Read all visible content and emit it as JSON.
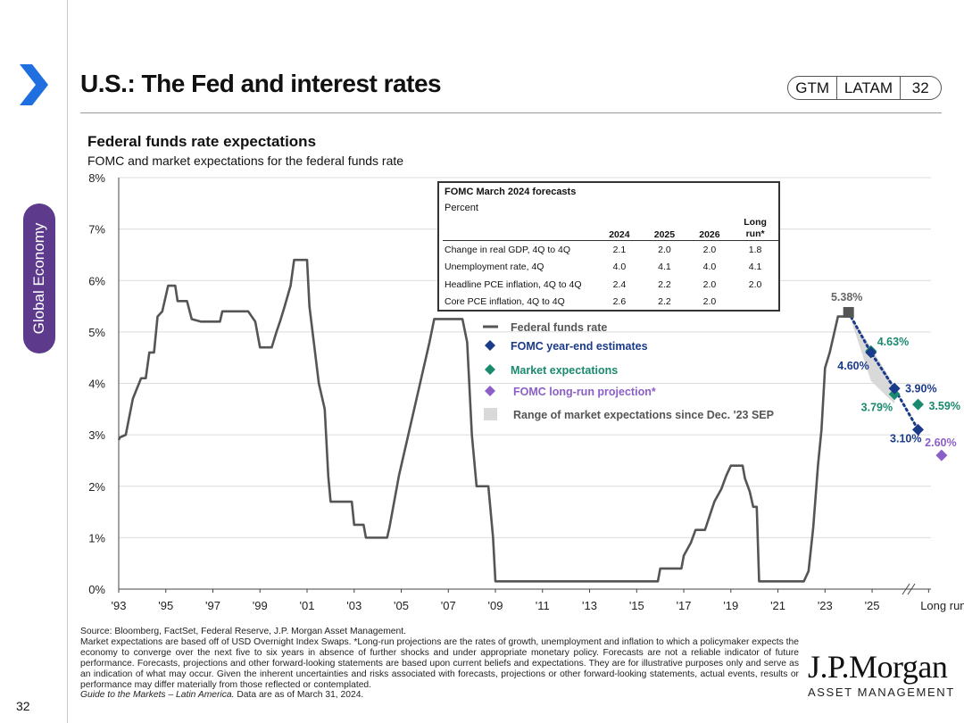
{
  "header": {
    "title": "U.S.: The Fed and interest rates",
    "pill": {
      "left": "GTM",
      "middle": "LATAM",
      "right": "32"
    }
  },
  "side_tab": "Global Economy",
  "page_number": "32",
  "chart_data": {
    "type": "line",
    "title": "Federal funds rate expectations",
    "subtitle": "FOMC and market expectations for the federal funds rate",
    "y_ticks": [
      "0%",
      "1%",
      "2%",
      "3%",
      "4%",
      "5%",
      "6%",
      "7%",
      "8%"
    ],
    "ylim": [
      0,
      8
    ],
    "x_ticks": [
      "'93",
      "'95",
      "'97",
      "'99",
      "'01",
      "'03",
      "'05",
      "'07",
      "'09",
      "'11",
      "'13",
      "'15",
      "'17",
      "'19",
      "'21",
      "'23",
      "'25",
      "Long run"
    ],
    "xlim": [
      1993,
      2027.5
    ],
    "series": [
      {
        "name": "Federal funds rate",
        "color": "#555555",
        "points": [
          [
            1993.0,
            2.9
          ],
          [
            1993.05,
            2.95
          ],
          [
            1993.3,
            3.0
          ],
          [
            1993.6,
            3.7
          ],
          [
            1993.95,
            4.1
          ],
          [
            1994.15,
            4.1
          ],
          [
            1994.3,
            4.6
          ],
          [
            1994.5,
            4.6
          ],
          [
            1994.65,
            5.3
          ],
          [
            1994.85,
            5.4
          ],
          [
            1995.1,
            5.9
          ],
          [
            1995.4,
            5.9
          ],
          [
            1995.5,
            5.6
          ],
          [
            1995.9,
            5.6
          ],
          [
            1996.1,
            5.25
          ],
          [
            1996.5,
            5.2
          ],
          [
            1997.0,
            5.2
          ],
          [
            1997.3,
            5.2
          ],
          [
            1997.4,
            5.4
          ],
          [
            1998.5,
            5.4
          ],
          [
            1998.8,
            5.2
          ],
          [
            1999.0,
            4.7
          ],
          [
            1999.5,
            4.7
          ],
          [
            1999.7,
            5.0
          ],
          [
            1999.85,
            5.2
          ],
          [
            2000.05,
            5.5
          ],
          [
            2000.3,
            5.9
          ],
          [
            2000.45,
            6.4
          ],
          [
            2000.6,
            6.4
          ],
          [
            2001.0,
            6.4
          ],
          [
            2001.1,
            5.5
          ],
          [
            2001.5,
            4.0
          ],
          [
            2001.75,
            3.5
          ],
          [
            2001.9,
            2.2
          ],
          [
            2002.0,
            1.7
          ],
          [
            2002.9,
            1.7
          ],
          [
            2003.0,
            1.25
          ],
          [
            2003.4,
            1.25
          ],
          [
            2003.5,
            1.0
          ],
          [
            2004.4,
            1.0
          ],
          [
            2004.5,
            1.2
          ],
          [
            2004.9,
            2.2
          ],
          [
            2005.3,
            3.0
          ],
          [
            2005.8,
            4.0
          ],
          [
            2006.2,
            4.8
          ],
          [
            2006.4,
            5.25
          ],
          [
            2007.6,
            5.25
          ],
          [
            2007.8,
            4.8
          ],
          [
            2008.0,
            3.0
          ],
          [
            2008.2,
            2.0
          ],
          [
            2008.7,
            2.0
          ],
          [
            2008.9,
            1.0
          ],
          [
            2009.0,
            0.15
          ],
          [
            2015.9,
            0.15
          ],
          [
            2016.0,
            0.4
          ],
          [
            2016.9,
            0.4
          ],
          [
            2017.0,
            0.65
          ],
          [
            2017.3,
            0.9
          ],
          [
            2017.5,
            1.15
          ],
          [
            2017.9,
            1.15
          ],
          [
            2018.3,
            1.7
          ],
          [
            2018.6,
            1.95
          ],
          [
            2018.8,
            2.2
          ],
          [
            2019.0,
            2.4
          ],
          [
            2019.5,
            2.4
          ],
          [
            2019.6,
            2.15
          ],
          [
            2019.8,
            1.9
          ],
          [
            2019.95,
            1.6
          ],
          [
            2020.1,
            1.6
          ],
          [
            2020.2,
            0.15
          ],
          [
            2022.1,
            0.15
          ],
          [
            2022.3,
            0.35
          ],
          [
            2022.5,
            1.2
          ],
          [
            2022.7,
            2.4
          ],
          [
            2022.85,
            3.1
          ],
          [
            2023.0,
            4.3
          ],
          [
            2023.2,
            4.6
          ],
          [
            2023.4,
            5.0
          ],
          [
            2023.55,
            5.3
          ],
          [
            2024.0,
            5.3
          ]
        ]
      },
      {
        "name": "FOMC  year-end estimates",
        "color": "#1a3a8a",
        "points": [
          [
            2024.0,
            5.38
          ],
          [
            2024.95,
            4.6
          ],
          [
            2025.95,
            3.9
          ],
          [
            2026.95,
            3.1
          ]
        ],
        "labels": [
          "5.38%",
          "4.60%",
          "3.90%",
          "3.10%"
        ]
      },
      {
        "name": "Market expectations",
        "color": "#1a8a6f",
        "points": [
          [
            2024.95,
            4.63
          ],
          [
            2025.95,
            3.79
          ],
          [
            2026.95,
            3.59
          ]
        ],
        "labels": [
          "4.63%",
          "3.79%",
          "3.59%"
        ]
      },
      {
        "name": "FOMC  long-run projection*",
        "color": "#8b5fc7",
        "points": [
          [
            2027.95,
            2.6
          ]
        ],
        "labels": [
          "2.60%"
        ]
      },
      {
        "name": "Range of market expectations since Dec. '23 SEP",
        "color": "#d9d9d9",
        "upper": [
          [
            2024.0,
            5.38
          ],
          [
            2024.95,
            4.7
          ],
          [
            2025.95,
            3.95
          ]
        ],
        "lower": [
          [
            2024.0,
            5.38
          ],
          [
            2024.95,
            4.05
          ],
          [
            2025.95,
            3.6
          ]
        ]
      }
    ],
    "legend": [
      {
        "label": "Federal funds rate",
        "symbol": "line",
        "color": "#555555"
      },
      {
        "label": "FOMC  year-end estimates",
        "symbol": "diamond",
        "color": "#1a3a8a"
      },
      {
        "label": "Market expectations",
        "symbol": "diamond",
        "color": "#1a8a6f"
      },
      {
        "label": "FOMC  long-run projection*",
        "symbol": "diamond",
        "color": "#8b5fc7"
      },
      {
        "label": "Range of market expectations since Dec. '23 SEP",
        "symbol": "square",
        "color": "#d9d9d9"
      }
    ],
    "grid": true
  },
  "fomc_table": {
    "title": "FOMC March 2024 forecasts",
    "subtitle": "Percent",
    "columns": [
      "2024",
      "2025",
      "2026",
      "Long run*"
    ],
    "rows": [
      {
        "label": "Change in real GDP, 4Q to 4Q",
        "values": [
          "2.1",
          "2.0",
          "2.0",
          "1.8"
        ]
      },
      {
        "label": "Unemployment rate, 4Q",
        "values": [
          "4.0",
          "4.1",
          "4.0",
          "4.1"
        ]
      },
      {
        "label": "Headline PCE inflation, 4Q to 4Q",
        "values": [
          "2.4",
          "2.2",
          "2.0",
          "2.0"
        ]
      },
      {
        "label": "Core PCE inflation, 4Q to 4Q",
        "values": [
          "2.6",
          "2.2",
          "2.0",
          ""
        ]
      }
    ]
  },
  "footer": {
    "source": "Source: Bloomberg, FactSet, Federal Reserve, J.P. Morgan Asset Management.",
    "notes": "Market expectations are based off of USD Overnight Index Swaps. *Long-run projections are the rates of growth, unemployment and inflation to which a policymaker expects the economy to converge over the next five to six years in absence of further shocks and under appropriate monetary policy. Forecasts are not a reliable indicator of future performance. Forecasts, projections and other forward-looking statements are based upon current beliefs and expectations. They are for illustrative purposes only and serve as an indication of what may occur. Given the inherent uncertainties and risks associated with forecasts, projections or other forward-looking statements, actual events, results or performance may differ materially from those reflected or contemplated.",
    "guide": "Guide to the Markets – Latin America.",
    "asof": " Data are as of March 31, 2024."
  },
  "brand": {
    "line1": "J.P.Morgan",
    "line2": "ASSET MANAGEMENT"
  }
}
